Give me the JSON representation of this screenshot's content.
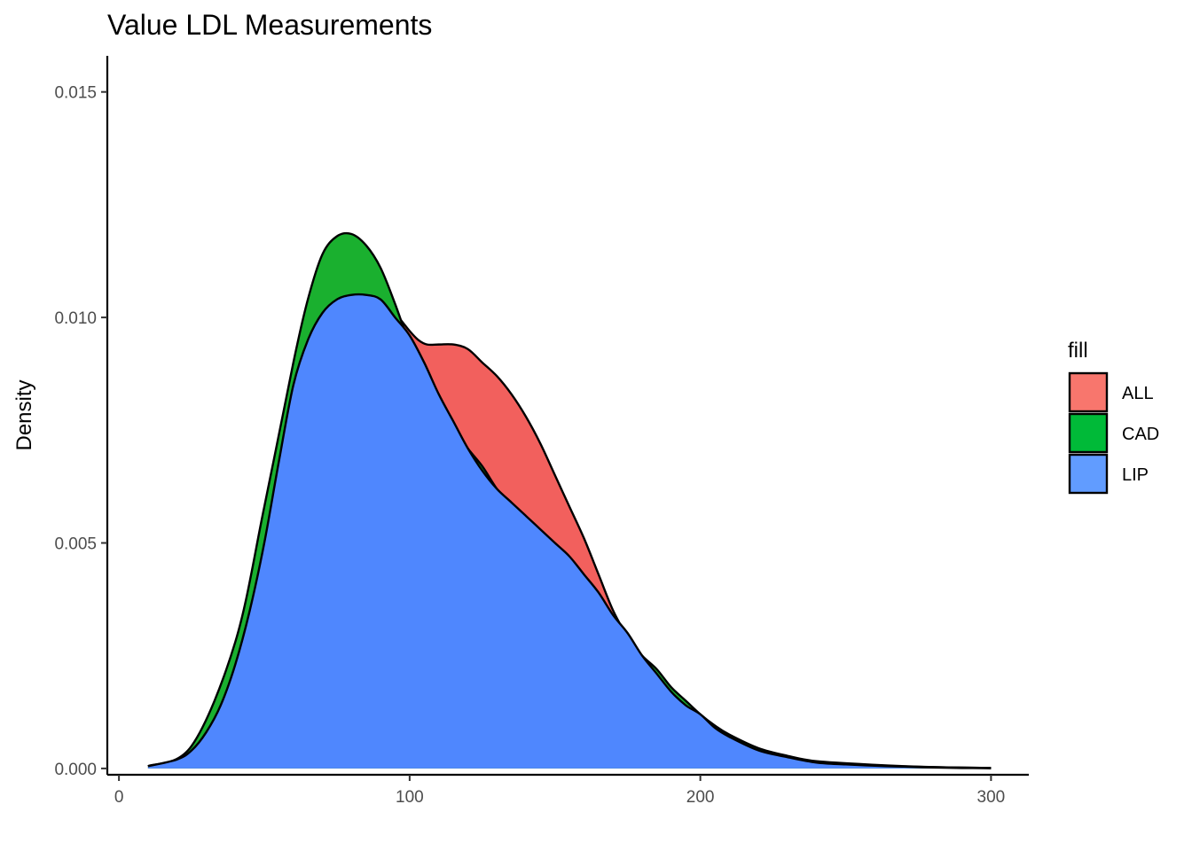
{
  "chart_data": {
    "type": "area",
    "title": "Value LDL Measurements",
    "xlabel": "",
    "ylabel": "Density",
    "xlim": [
      -4,
      313
    ],
    "ylim": [
      -0.00014,
      0.0158
    ],
    "x_ticks": [
      0,
      100,
      200,
      300
    ],
    "x_tick_labels": [
      "0",
      "100",
      "200",
      "300"
    ],
    "y_ticks": [
      0,
      0.005,
      0.01,
      0.015
    ],
    "y_tick_labels": [
      "0.000",
      "0.005",
      "0.010",
      "0.015"
    ],
    "grid": false,
    "legend": {
      "title": "fill",
      "position": "right",
      "entries": [
        {
          "label": "ALL",
          "color": "#F8766D"
        },
        {
          "label": "CAD",
          "color": "#00BA38"
        },
        {
          "label": "LIP",
          "color": "#619CFF"
        }
      ]
    },
    "series": [
      {
        "name": "ALL",
        "color": "#F2605D",
        "x": [
          10,
          25,
          40,
          50,
          60,
          70,
          80,
          85,
          90,
          95,
          100,
          103,
          106,
          110,
          115,
          120,
          125,
          130,
          135,
          140,
          145,
          150,
          155,
          160,
          165,
          170,
          175,
          180,
          185,
          190,
          195,
          200,
          205,
          210,
          220,
          230,
          240,
          260,
          280,
          300
        ],
        "y": [
          5e-05,
          0.0004,
          0.0021,
          0.0045,
          0.0075,
          0.0095,
          0.01045,
          0.01055,
          0.01045,
          0.0101,
          0.0097,
          0.0095,
          0.0094,
          0.0094,
          0.0094,
          0.0093,
          0.009,
          0.0087,
          0.0083,
          0.0078,
          0.0072,
          0.0065,
          0.0058,
          0.0051,
          0.0043,
          0.0035,
          0.0029,
          0.0023,
          0.002,
          0.0016,
          0.0013,
          0.0011,
          0.00085,
          0.00068,
          0.00042,
          0.00025,
          0.00015,
          7e-05,
          3e-05,
          1e-05
        ]
      },
      {
        "name": "CAD",
        "color": "#1AB02F",
        "x": [
          10,
          25,
          40,
          50,
          60,
          65,
          70,
          75,
          80,
          85,
          90,
          95,
          100,
          103,
          106,
          110,
          115,
          120,
          125,
          130,
          135,
          140,
          145,
          150,
          155,
          160,
          165,
          170,
          175,
          180,
          185,
          190,
          195,
          200,
          205,
          210,
          220,
          230,
          240,
          260,
          280,
          300
        ],
        "y": [
          5e-05,
          0.0005,
          0.0028,
          0.0058,
          0.009,
          0.0104,
          0.0114,
          0.0118,
          0.01185,
          0.0116,
          0.0111,
          0.0103,
          0.0094,
          0.009,
          0.0086,
          0.0082,
          0.0076,
          0.0071,
          0.0067,
          0.0062,
          0.0058,
          0.0055,
          0.0052,
          0.0048,
          0.0045,
          0.0041,
          0.0037,
          0.0033,
          0.0029,
          0.0025,
          0.0022,
          0.0018,
          0.0015,
          0.0012,
          0.00095,
          0.00075,
          0.00045,
          0.00028,
          0.00016,
          8e-05,
          3e-05,
          1e-05
        ]
      },
      {
        "name": "LIP",
        "color": "#4F87FE",
        "x": [
          10,
          20,
          25,
          30,
          35,
          40,
          45,
          50,
          55,
          60,
          65,
          70,
          75,
          80,
          85,
          90,
          95,
          100,
          105,
          110,
          115,
          120,
          125,
          130,
          135,
          140,
          145,
          150,
          155,
          160,
          165,
          170,
          175,
          180,
          185,
          190,
          195,
          200,
          205,
          210,
          220,
          230,
          240,
          250,
          260,
          270,
          280,
          290,
          300
        ],
        "y": [
          5e-05,
          0.0002,
          0.0004,
          0.0008,
          0.0014,
          0.0023,
          0.0035,
          0.005,
          0.0068,
          0.0085,
          0.0095,
          0.0101,
          0.0104,
          0.0105,
          0.0105,
          0.0104,
          0.01,
          0.0096,
          0.009,
          0.0083,
          0.0077,
          0.0071,
          0.0066,
          0.0062,
          0.0059,
          0.0056,
          0.0053,
          0.005,
          0.0047,
          0.0043,
          0.0039,
          0.0034,
          0.003,
          0.0025,
          0.0021,
          0.0017,
          0.0014,
          0.0012,
          0.0009,
          0.0007,
          0.0004,
          0.00025,
          0.00013,
          9e-05,
          6e-05,
          4e-05,
          2e-05,
          1e-05,
          5e-06
        ]
      }
    ]
  }
}
